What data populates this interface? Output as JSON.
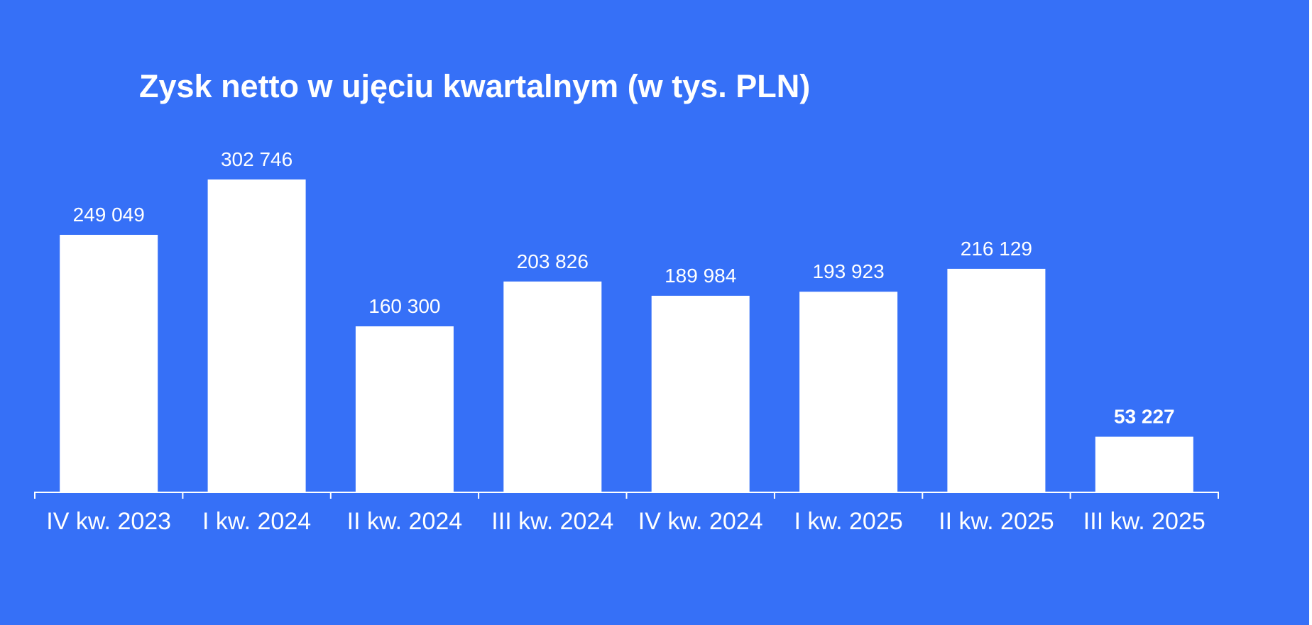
{
  "colors": {
    "background": "#3670f7",
    "bar": "#ffffff",
    "text": "#ffffff",
    "axis": "#ffffff"
  },
  "chart_data": {
    "type": "bar",
    "title": "Zysk netto w ujęciu kwartalnym (w tys. PLN)",
    "xlabel": "",
    "ylabel": "",
    "ylim": [
      0,
      302746
    ],
    "grid": false,
    "categories": [
      "IV kw. 2023",
      "I kw. 2024",
      "II kw. 2024",
      "III kw. 2024",
      "IV kw. 2024",
      "I kw. 2025",
      "II kw. 2025",
      "III kw. 2025"
    ],
    "values": [
      249049,
      302746,
      160300,
      203826,
      189984,
      193923,
      216129,
      53227
    ],
    "value_labels": [
      "249 049",
      "302 746",
      "160 300",
      "203 826",
      "189 984",
      "193 923",
      "216 129",
      "53 227"
    ],
    "bold_labels": [
      false,
      false,
      false,
      false,
      false,
      false,
      false,
      true
    ]
  }
}
